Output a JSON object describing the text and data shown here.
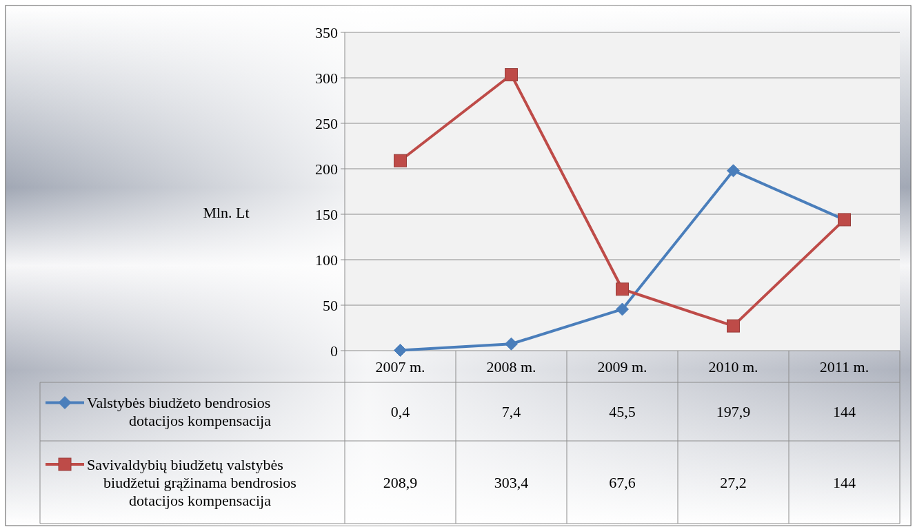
{
  "chart_data": {
    "type": "line",
    "ylabel": "Mln. Lt",
    "categories": [
      "2007 m.",
      "2008 m.",
      "2009 m.",
      "2010 m.",
      "2011 m."
    ],
    "series": [
      {
        "name": "Valstybės biudžeto bendrosios dotacijos kompensacija",
        "color": "#4a7ebb",
        "marker": "diamond",
        "values": [
          0.4,
          7.4,
          45.5,
          197.9,
          144
        ],
        "value_labels": [
          "0,4",
          "7,4",
          "45,5",
          "197,9",
          "144"
        ]
      },
      {
        "name": "Savivaldybių biudžetų valstybės biudžetui grąžinama bendrosios dotacijos kompensacija",
        "color": "#be4b48",
        "marker": "square",
        "values": [
          208.9,
          303.4,
          67.6,
          27.2,
          144
        ],
        "value_labels": [
          "208,9",
          "303,4",
          "67,6",
          "27,2",
          "144"
        ]
      }
    ],
    "ylim": [
      0,
      350
    ],
    "yticks": [
      0,
      50,
      100,
      150,
      200,
      250,
      300,
      350
    ],
    "grid": "y",
    "legend": "bottom left",
    "line_style": "solid"
  }
}
